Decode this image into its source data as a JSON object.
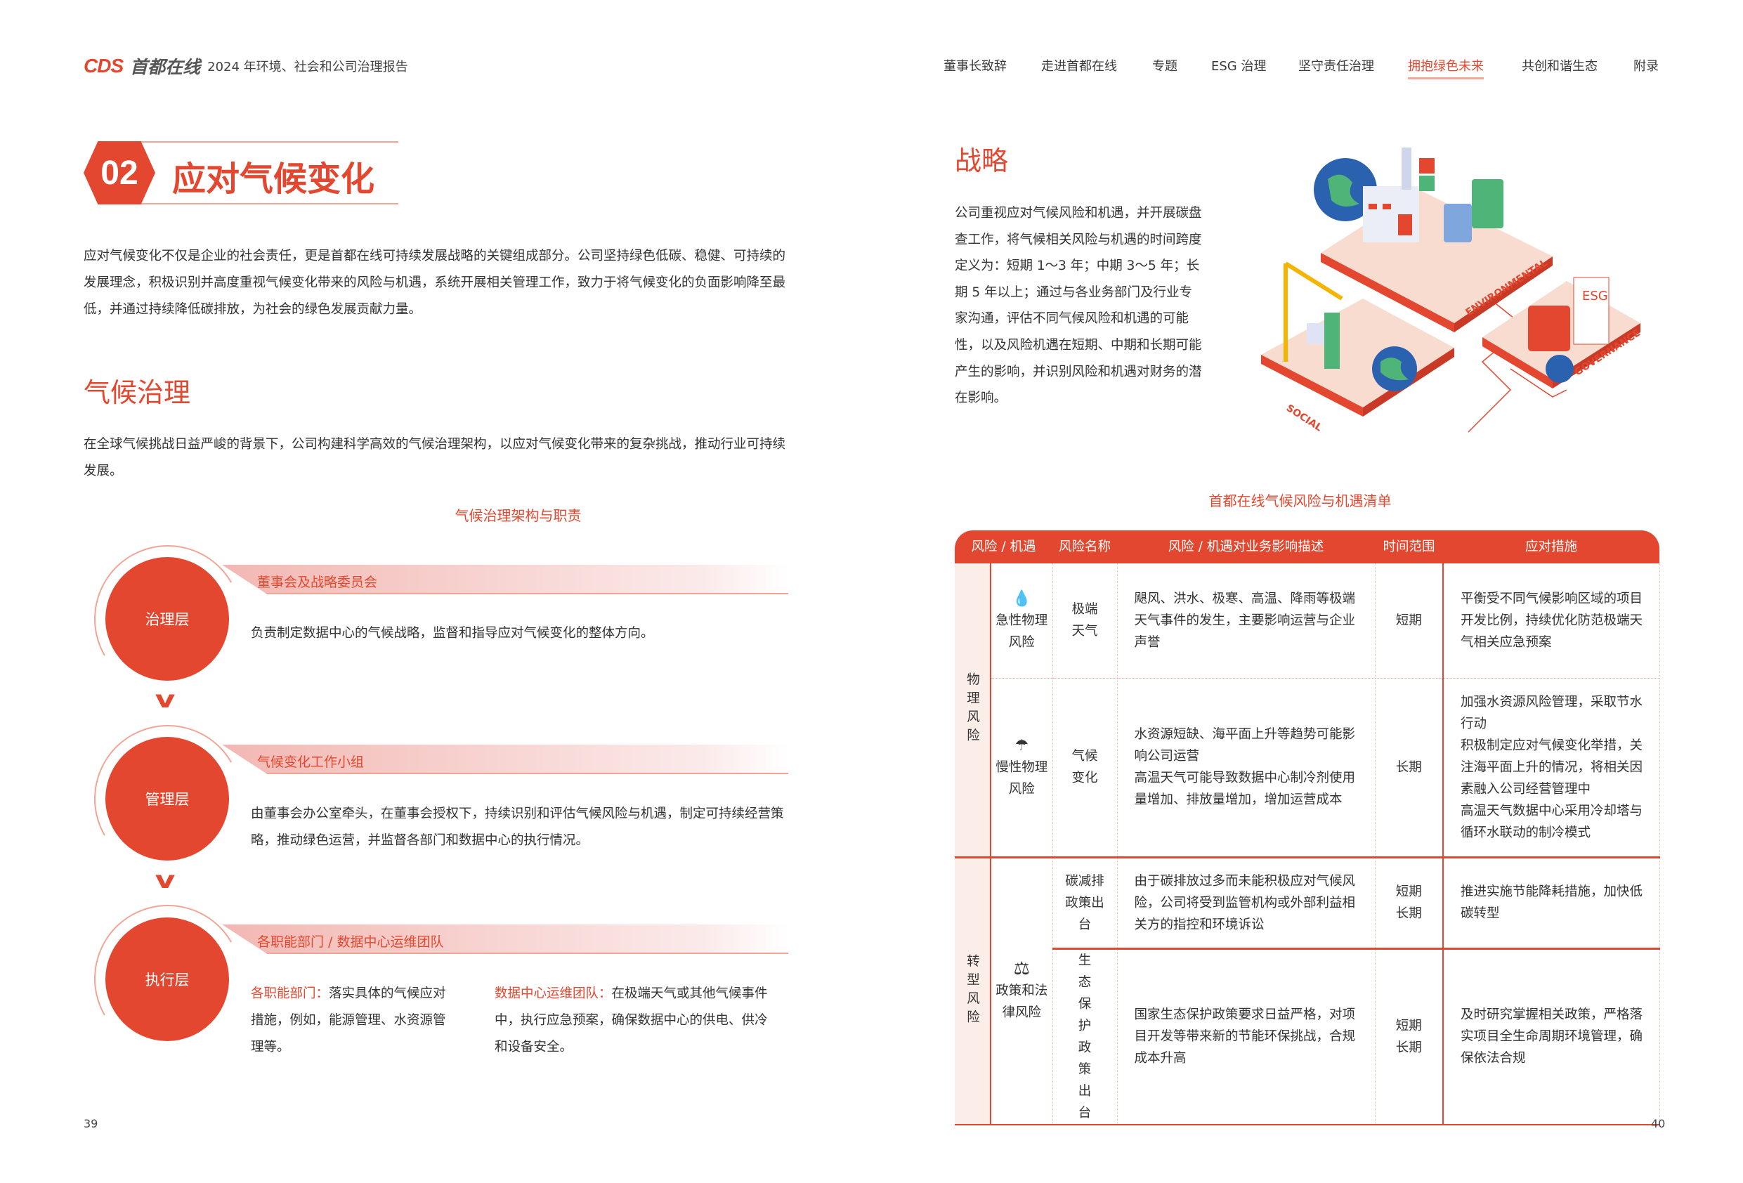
{
  "header": {
    "logo_latin": "CDS",
    "logo_cn": "首都在线",
    "report_title": "2024 年环境、社会和公司治理报告",
    "nav": [
      "董事长致辞",
      "走进首都在线",
      "专题",
      "ESG 治理",
      "坚守责任治理",
      "拥抱绿色未来",
      "共创和谐生态",
      "附录"
    ],
    "active_nav": "拥抱绿色未来"
  },
  "accent_color": "#e4472f",
  "left": {
    "chapter_number": "02",
    "chapter_title": "应对气候变化",
    "intro": "应对气候变化不仅是企业的社会责任，更是首都在线可持续发展战略的关键组成部分。公司坚持绿色低碳、稳健、可持续的发展理念，积极识别并高度重视气候变化带来的风险与机遇，系统开展相关管理工作，致力于将气候变化的负面影响降至最低，并通过持续降低碳排放，为社会的绿色发展贡献力量。",
    "section_title": "气候治理",
    "section_text": "在全球气候挑战日益严峻的背景下，公司构建科学高效的气候治理架构，以应对气候变化带来的复杂挑战，推动行业可持续发展。",
    "diagram_caption": "气候治理架构与职责",
    "layers": [
      {
        "name": "治理层",
        "body": "董事会及战略委员会",
        "desc": "负责制定数据中心的气候战略，监督和指导应对气候变化的整体方向。"
      },
      {
        "name": "管理层",
        "body": "气候变化工作小组",
        "desc": "由董事会办公室牵头，在董事会授权下，持续识别和评估气候风险与机遇，制定可持续经营策略，推动绿色运营，并监督各部门和数据中心的执行情况。"
      },
      {
        "name": "执行层",
        "body": "各职能部门 / 数据中心运维团队",
        "col1_label": "各职能部门：",
        "col1_text": "落实具体的气候应对措施，例如，能源管理、水资源管理等。",
        "col2_label": "数据中心运维团队：",
        "col2_text": "在极端天气或其他气候事件中，执行应急预案，确保数据中心的供电、供冷和设备安全。"
      }
    ],
    "page_number": "39"
  },
  "right": {
    "strategy_title": "战略",
    "strategy_text": "公司重视应对气候风险和机遇，并开展碳盘查工作，将气候相关风险与机遇的时间跨度定义为：短期 1～3 年；中期 3～5 年；长期 5 年以上；通过与各业务部门及行业专家沟通，评估不同气候风险和机遇的可能性，以及风险机遇在短期、中期和长期可能产生的影响，并识别风险和机遇对财务的潜在影响。",
    "illustration_labels": [
      "ENVIRONMENTAL",
      "SOCIAL",
      "GOVERNANCE",
      "ESG"
    ],
    "table_caption": "首都在线气候风险与机遇清单",
    "table_headers": [
      "风险 / 机遇",
      "风险名称",
      "风险 / 机遇对业务影响描述",
      "时间范围",
      "应对措施"
    ],
    "categories": [
      "物理风险",
      "转型风险"
    ],
    "subcategories": [
      "急性物理风险",
      "慢性物理风险",
      "政策和法律风险"
    ],
    "rows": [
      {
        "name": "极端天气",
        "desc": "飓风、洪水、极寒、高温、降雨等极端天气事件的发生，主要影响运营与企业声誉",
        "time": "短期",
        "measure": "平衡受不同气候影响区域的项目开发比例，持续优化防范极端天气相关应急预案"
      },
      {
        "name": "气候变化",
        "desc": "水资源短缺、海平面上升等趋势可能影响公司运营\n高温天气可能导致数据中心制冷剂使用量增加、排放量增加，增加运营成本",
        "time": "长期",
        "measure": "加强水资源风险管理，采取节水行动\n积极制定应对气候变化举措，关注海平面上升的情况，将相关因素融入公司经营管理中\n高温天气数据中心采用冷却塔与循环水联动的制冷模式"
      },
      {
        "name": "碳减排政策出台",
        "desc": "由于碳排放过多而未能积极应对气候风险，公司将受到监管机构或外部利益相关方的指控和环境诉讼",
        "time": "短期\n长期",
        "measure": "推进实施节能降耗措施，加快低碳转型"
      },
      {
        "name": "生态保护政策出台",
        "desc": "国家生态保护政策要求日益严格，对项目开发等带来新的节能环保挑战，合规成本升高",
        "time": "短期\n长期",
        "measure": "及时研究掌握相关政策，严格落实项目全生命周期环境管理，确保依法合规"
      }
    ],
    "page_number": "40"
  }
}
